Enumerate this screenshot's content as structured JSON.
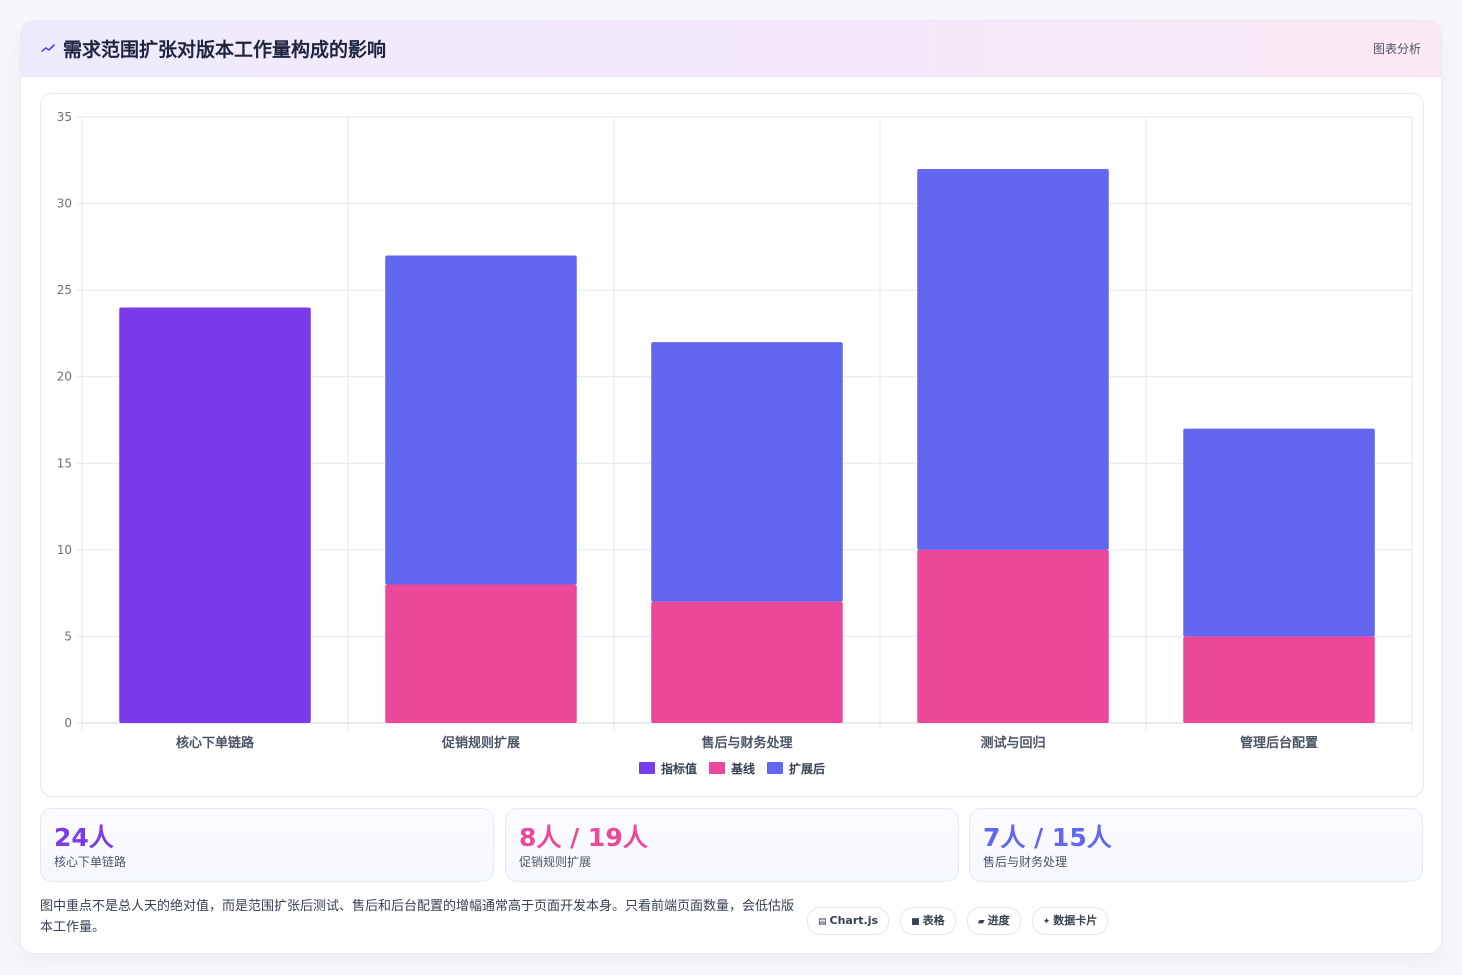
{
  "header": {
    "title": "需求范围扩张对版本工作量构成的影响",
    "tag": "图表分析",
    "logo_icon": "sparkline-icon"
  },
  "chart_data": {
    "type": "bar",
    "stacked": true,
    "categories": [
      "核心下单链路",
      "促销规则扩展",
      "售后与财务处理",
      "测试与回归",
      "管理后台配置"
    ],
    "series": [
      {
        "name": "指标值",
        "color": "#7c3aed",
        "values": [
          24,
          0,
          0,
          0,
          0
        ]
      },
      {
        "name": "基线",
        "color": "#ec4899",
        "values": [
          0,
          8,
          7,
          10,
          5
        ]
      },
      {
        "name": "扩展后",
        "color": "#6366f1",
        "values": [
          0,
          19,
          15,
          22,
          12
        ]
      }
    ],
    "ylim": [
      0,
      35
    ],
    "yticks": [
      0,
      5,
      10,
      15,
      20,
      25,
      30,
      35
    ],
    "grid": true,
    "legend": "bottom"
  },
  "stats": [
    {
      "value": "24人",
      "label": "核心下单链路",
      "color": "#7c3aed"
    },
    {
      "value": "8人 / 19人",
      "label": "促销规则扩展",
      "color": "#ec4899"
    },
    {
      "value": "7人 / 15人",
      "label": "售后与财务处理",
      "color": "#6366f1"
    }
  ],
  "note": "图中重点不是总人天的绝对值，而是范围扩张后测试、售后和后台配置的增幅通常高于页面开发本身。只看前端页面数量，会低估版本工作量。",
  "chips": [
    {
      "icon": "chart-icon",
      "glyph": "▤",
      "label": "Chart.js"
    },
    {
      "icon": "table-icon",
      "glyph": "■",
      "label": "表格"
    },
    {
      "icon": "progress-icon",
      "glyph": "▰",
      "label": "进度"
    },
    {
      "icon": "data-card-icon",
      "glyph": "✦",
      "label": "数据卡片"
    }
  ]
}
